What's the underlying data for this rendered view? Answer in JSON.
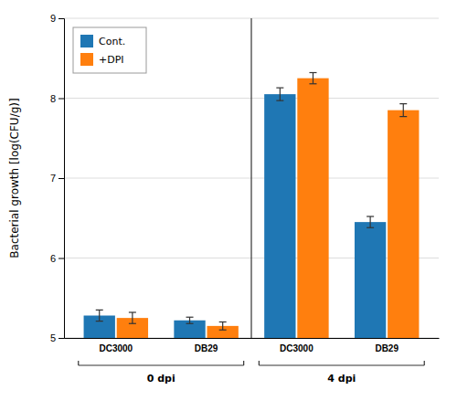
{
  "chart_data": {
    "type": "bar",
    "categories": [
      "DC3000",
      "DB29",
      "DC3000",
      "DB29"
    ],
    "annotations": [
      "0 dpi",
      "4 dpi"
    ],
    "series": [
      {
        "name": "Cont.",
        "values": [
          5.28,
          5.22,
          8.05,
          6.45
        ],
        "errors": [
          0.07,
          0.04,
          0.08,
          0.07
        ]
      },
      {
        "name": "+DPI",
        "values": [
          5.25,
          5.15,
          8.25,
          7.85
        ],
        "errors": [
          0.07,
          0.05,
          0.07,
          0.08
        ]
      }
    ],
    "ylabel": "Bacterial growth [log(CFU/g)]",
    "ylim": [
      5.0,
      9.0
    ],
    "yticks": [
      5,
      6,
      7,
      8,
      9
    ],
    "grid": true,
    "legend": "upper left"
  }
}
